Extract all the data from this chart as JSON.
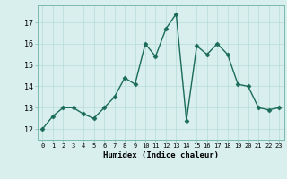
{
  "x": [
    0,
    1,
    2,
    3,
    4,
    5,
    6,
    7,
    8,
    9,
    10,
    11,
    12,
    13,
    14,
    15,
    16,
    17,
    18,
    19,
    20,
    21,
    22,
    23
  ],
  "y": [
    12.0,
    12.6,
    13.0,
    13.0,
    12.7,
    12.5,
    13.0,
    13.5,
    14.4,
    14.1,
    16.0,
    15.4,
    16.7,
    17.4,
    12.4,
    15.9,
    15.5,
    16.0,
    15.5,
    14.1,
    14.0,
    13.0,
    12.9,
    13.0
  ],
  "xlabel": "Humidex (Indice chaleur)",
  "ylim": [
    11.5,
    17.8
  ],
  "yticks": [
    12,
    13,
    14,
    15,
    16,
    17
  ],
  "xticks": [
    0,
    1,
    2,
    3,
    4,
    5,
    6,
    7,
    8,
    9,
    10,
    11,
    12,
    13,
    14,
    15,
    16,
    17,
    18,
    19,
    20,
    21,
    22,
    23
  ],
  "xtick_labels": [
    "0",
    "1",
    "2",
    "3",
    "4",
    "5",
    "6",
    "7",
    "8",
    "9",
    "10",
    "11",
    "12",
    "13",
    "14",
    "15",
    "16",
    "17",
    "18",
    "19",
    "20",
    "21",
    "22",
    "23"
  ],
  "line_color": "#1a6b5a",
  "marker": "D",
  "marker_size": 2.5,
  "line_width": 1.0,
  "bg_color": "#d8efed",
  "grid_color": "#b8dbd8",
  "xlabel_fontsize": 6.5,
  "ytick_fontsize": 6.0,
  "xtick_fontsize": 5.0
}
